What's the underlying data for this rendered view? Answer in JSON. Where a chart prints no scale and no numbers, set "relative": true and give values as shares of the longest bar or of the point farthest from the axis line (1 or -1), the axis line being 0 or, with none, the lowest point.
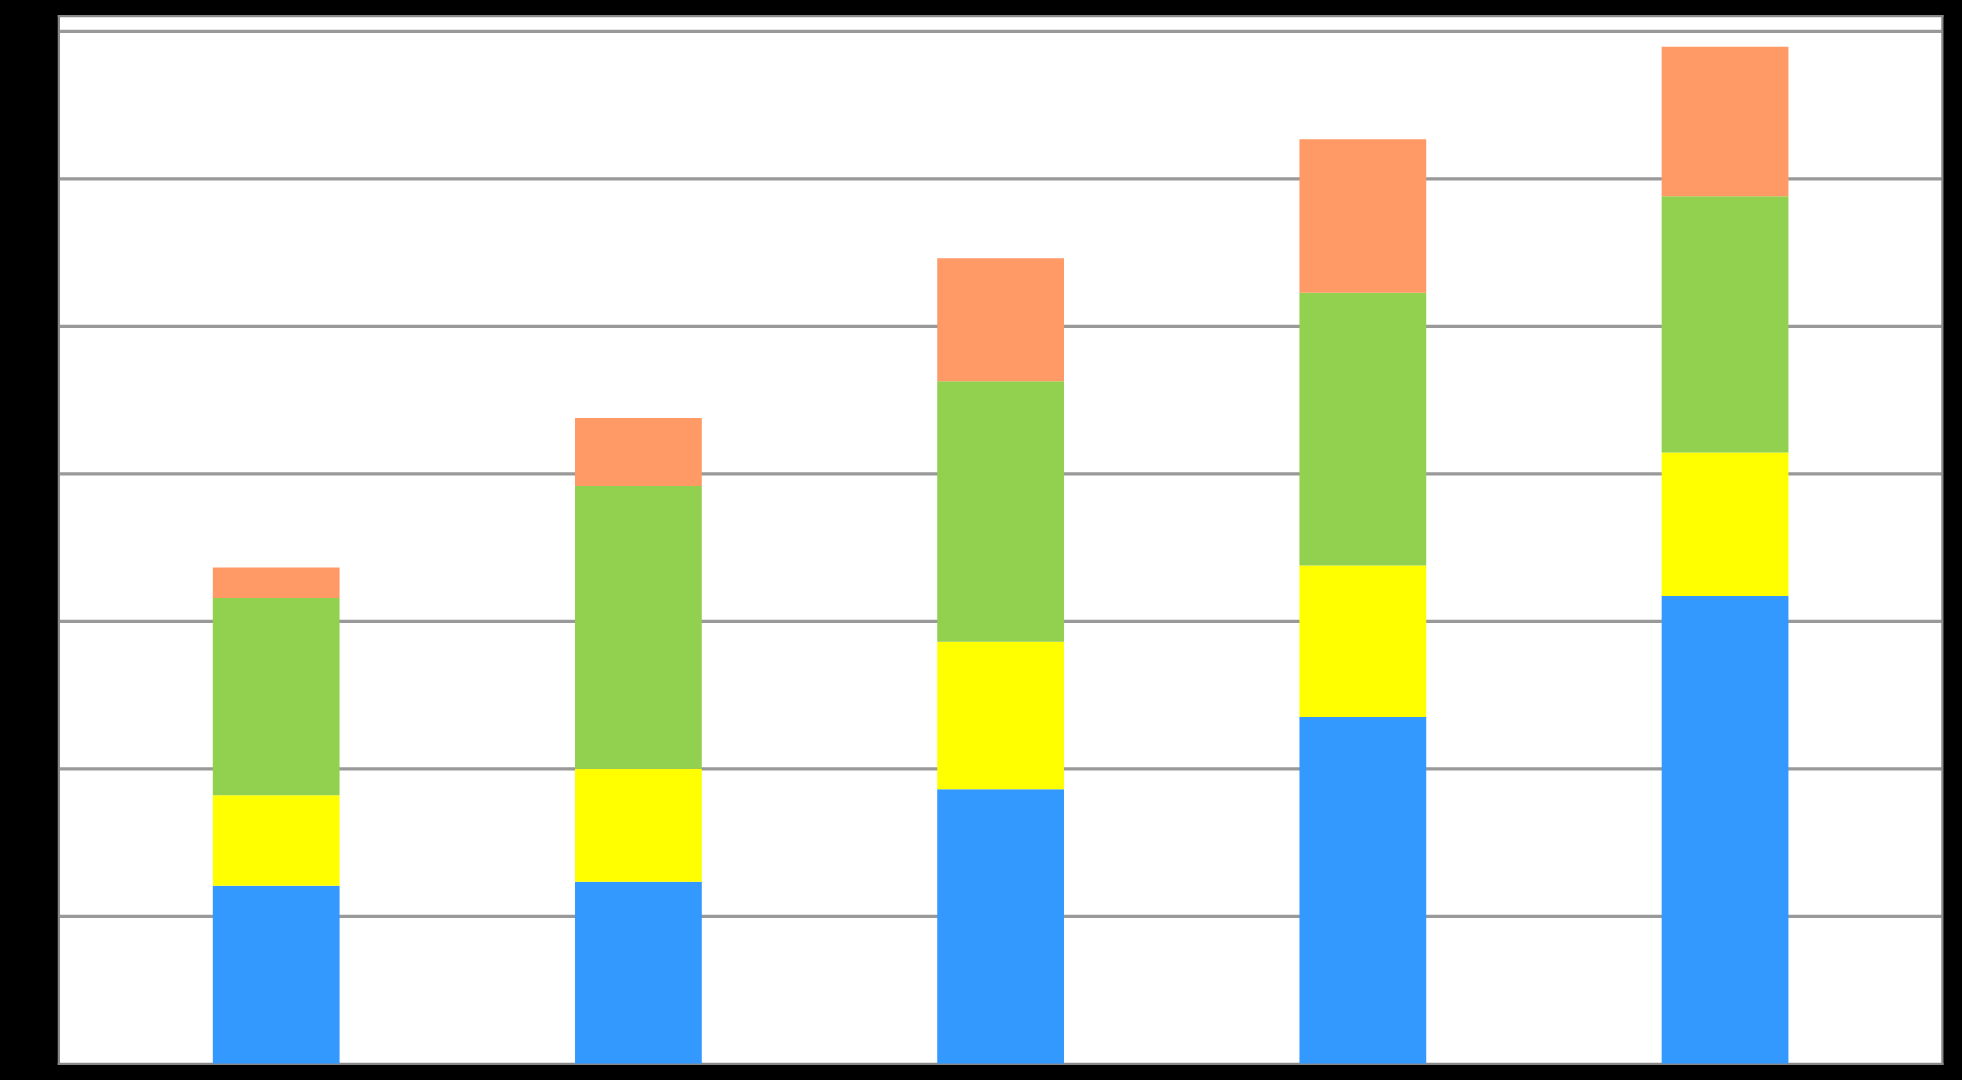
{
  "chart_data": {
    "type": "bar",
    "stacked": true,
    "relative": true,
    "categories": [
      null,
      null,
      null,
      null,
      null
    ],
    "series": [
      {
        "color": "#3399ff",
        "values": [
          0.175,
          0.179,
          0.27,
          0.341,
          0.46
        ]
      },
      {
        "color": "#ffff00",
        "values": [
          0.089,
          0.111,
          0.145,
          0.149,
          0.141
        ]
      },
      {
        "color": "#92d050",
        "values": [
          0.194,
          0.278,
          0.256,
          0.268,
          0.252
        ]
      },
      {
        "color": "#ff9966",
        "values": [
          0.03,
          0.067,
          0.121,
          0.151,
          0.147
        ]
      }
    ],
    "grid": "y",
    "legend": false
  }
}
